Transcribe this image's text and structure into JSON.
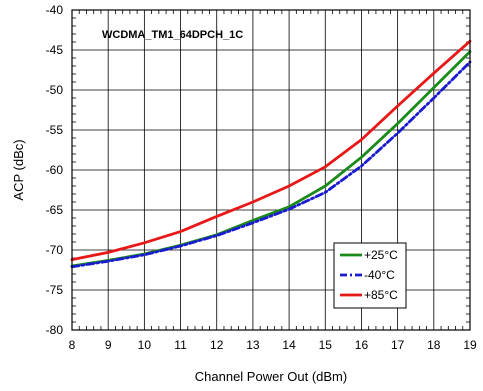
{
  "chart_data": {
    "type": "line",
    "title": "WCDMA_TM1_64DPCH_1C",
    "xlabel": "Channel Power Out (dBm)",
    "ylabel": "ACP (dBc)",
    "xlim": [
      8,
      19
    ],
    "ylim": [
      -80,
      -40
    ],
    "x_ticks": [
      8,
      9,
      10,
      11,
      12,
      13,
      14,
      15,
      16,
      17,
      18,
      19
    ],
    "y_ticks": [
      -40,
      -45,
      -50,
      -55,
      -60,
      -65,
      -70,
      -75,
      -80
    ],
    "grid": true,
    "legend_position": "lower-right",
    "series": [
      {
        "name": "+25°C",
        "color": "#1a8a1a",
        "line_style": "solid",
        "x": [
          8,
          9,
          10,
          11,
          12,
          13,
          14,
          15,
          16,
          17,
          18,
          19
        ],
        "y": [
          -72.0,
          -71.3,
          -70.5,
          -69.4,
          -68.1,
          -66.3,
          -64.6,
          -62.0,
          -58.4,
          -54.2,
          -49.7,
          -45.2
        ]
      },
      {
        "name": "-40°C",
        "color": "#1a1ad0",
        "line_style": "dash-dot",
        "x": [
          8,
          9,
          10,
          11,
          12,
          13,
          14,
          15,
          16,
          17,
          18,
          19
        ],
        "y": [
          -72.1,
          -71.4,
          -70.6,
          -69.5,
          -68.2,
          -66.6,
          -64.9,
          -62.8,
          -59.5,
          -55.4,
          -51.0,
          -46.5
        ]
      },
      {
        "name": "+85°C",
        "color": "#e81818",
        "line_style": "solid",
        "x": [
          8,
          9,
          10,
          11,
          12,
          13,
          14,
          15,
          16,
          17,
          18,
          19
        ],
        "y": [
          -71.2,
          -70.3,
          -69.1,
          -67.7,
          -65.8,
          -64.0,
          -62.0,
          -59.6,
          -56.2,
          -52.0,
          -47.9,
          -43.9
        ]
      }
    ]
  }
}
